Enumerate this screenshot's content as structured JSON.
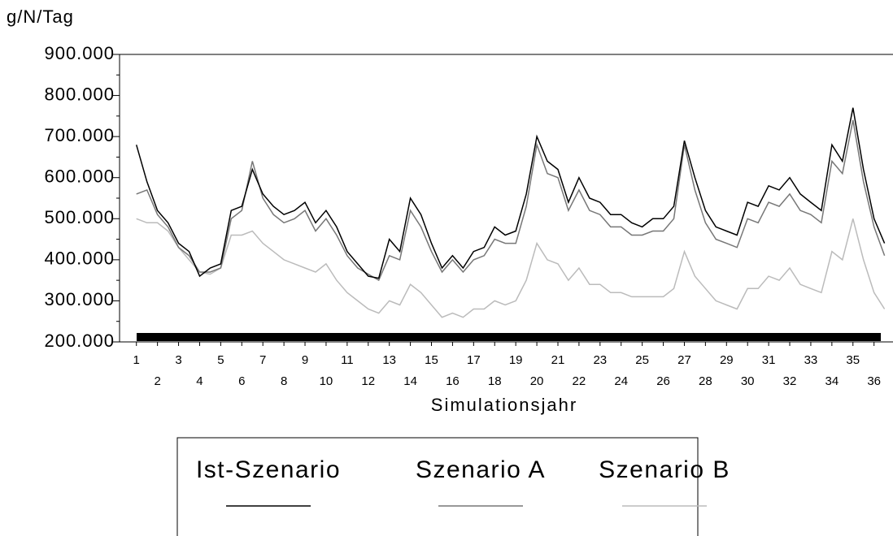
{
  "chart_data": {
    "type": "line",
    "y_label": "g/N/Tag",
    "x_label": "Simulationsjahr",
    "x": [
      1,
      1.5,
      2,
      2.5,
      3,
      3.5,
      4,
      4.5,
      5,
      5.5,
      6,
      6.5,
      7,
      7.5,
      8,
      8.5,
      9,
      9.5,
      10,
      10.5,
      11,
      11.5,
      12,
      12.5,
      13,
      13.5,
      14,
      14.5,
      15,
      15.5,
      16,
      16.5,
      17,
      17.5,
      18,
      18.5,
      19,
      19.5,
      20,
      20.5,
      21,
      21.5,
      22,
      22.5,
      23,
      23.5,
      24,
      24.5,
      25,
      25.5,
      26,
      26.5,
      27,
      27.5,
      28,
      28.5,
      29,
      29.5,
      30,
      30.5,
      31,
      31.5,
      32,
      32.5,
      33,
      33.5,
      34,
      34.5,
      35,
      35.5,
      36,
      36.5
    ],
    "series": [
      {
        "name": "Ist-Szenario",
        "color": "#000000",
        "values": [
          680,
          590,
          520,
          490,
          440,
          420,
          360,
          380,
          390,
          520,
          530,
          620,
          560,
          530,
          510,
          520,
          540,
          490,
          520,
          480,
          420,
          390,
          360,
          355,
          450,
          420,
          550,
          510,
          440,
          380,
          410,
          380,
          420,
          430,
          480,
          460,
          470,
          560,
          700,
          640,
          620,
          540,
          600,
          550,
          540,
          510,
          510,
          490,
          480,
          500,
          500,
          530,
          690,
          600,
          520,
          480,
          470,
          460,
          540,
          530,
          580,
          570,
          600,
          560,
          540,
          520,
          680,
          640,
          770,
          620,
          500,
          440
        ]
      },
      {
        "name": "Szenario A",
        "color": "#777777",
        "values": [
          560,
          570,
          510,
          480,
          430,
          410,
          370,
          370,
          380,
          500,
          520,
          640,
          550,
          510,
          490,
          500,
          520,
          470,
          500,
          460,
          410,
          380,
          365,
          350,
          410,
          400,
          520,
          480,
          420,
          370,
          400,
          370,
          400,
          410,
          450,
          440,
          440,
          530,
          680,
          610,
          600,
          520,
          570,
          520,
          510,
          480,
          480,
          460,
          460,
          470,
          470,
          500,
          680,
          570,
          490,
          450,
          440,
          430,
          500,
          490,
          540,
          530,
          560,
          520,
          510,
          490,
          640,
          610,
          740,
          590,
          480,
          410
        ]
      },
      {
        "name": "Szenario B",
        "color": "#bbbbbb",
        "values": [
          500,
          490,
          490,
          470,
          430,
          400,
          370,
          365,
          380,
          460,
          460,
          470,
          440,
          420,
          400,
          390,
          380,
          370,
          390,
          350,
          320,
          300,
          280,
          270,
          300,
          290,
          340,
          320,
          290,
          260,
          270,
          260,
          280,
          280,
          300,
          290,
          300,
          350,
          440,
          400,
          390,
          350,
          380,
          340,
          340,
          320,
          320,
          310,
          310,
          310,
          310,
          330,
          420,
          360,
          330,
          300,
          290,
          280,
          330,
          330,
          360,
          350,
          380,
          340,
          330,
          320,
          420,
          400,
          500,
          400,
          320,
          280
        ]
      }
    ],
    "xlim": [
      0.2,
      36.9
    ],
    "xticks": [
      1,
      2,
      3,
      4,
      5,
      6,
      7,
      8,
      9,
      10,
      11,
      12,
      13,
      14,
      15,
      16,
      17,
      18,
      19,
      20,
      21,
      22,
      23,
      24,
      25,
      26,
      27,
      28,
      29,
      30,
      31,
      32,
      33,
      34,
      35,
      36
    ],
    "ylim": [
      200,
      900
    ],
    "yticks": [
      {
        "value": 200,
        "label": "200.000"
      },
      {
        "value": 300,
        "label": "300.000"
      },
      {
        "value": 400,
        "label": "400.000"
      },
      {
        "value": 500,
        "label": "500.000"
      },
      {
        "value": 600,
        "label": "600.000"
      },
      {
        "value": 700,
        "label": "700.000"
      },
      {
        "value": 800,
        "label": "800.000"
      },
      {
        "value": 900,
        "label": "900.000"
      }
    ]
  }
}
